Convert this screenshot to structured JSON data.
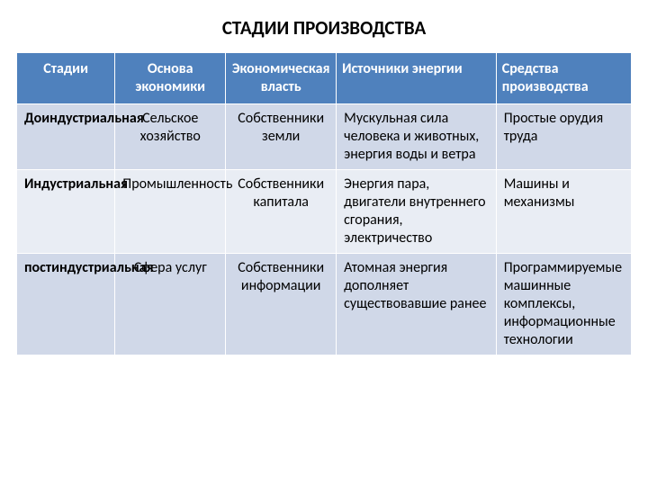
{
  "title": "СТАДИИ ПРОИЗВОДСТВА",
  "table": {
    "columns": [
      "Стадии",
      "Основа экономики",
      "Экономическая власть",
      "Источники энергии",
      "Средства производства"
    ],
    "rows": [
      {
        "stage": "Доиндустриальная",
        "basis": "Сельское хозяйство",
        "power": "Собственники земли",
        "energy": "Мускульная сила человека и животных, энергия воды и ветра",
        "means": "Простые орудия труда"
      },
      {
        "stage": "Индустриальная",
        "basis": "Промышленность",
        "power": "Собственники капитала",
        "energy": "Энергия пара, двигатели внутреннего сгорания, электричество",
        "means": "Машины и механизмы"
      },
      {
        "stage": "постиндустриальная",
        "basis": "Сфера услуг",
        "power": "Собственники информации",
        "energy": "Атомная энергия дополняет существовавшие ранее",
        "means": "Программируемые машинные комплексы, информационные технологии"
      }
    ],
    "header_bg": "#4f81bd",
    "header_fg": "#ffffff",
    "row_odd_bg": "#d0d8e8",
    "row_even_bg": "#e9edf4",
    "border_color": "#ffffff",
    "title_fontsize": 21,
    "body_fontsize": 16
  }
}
